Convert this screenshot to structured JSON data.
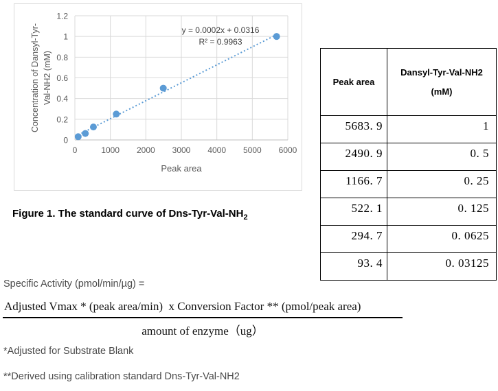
{
  "chart_data": {
    "type": "scatter",
    "xlabel": "Peak area",
    "ylabel_lines": [
      "Concentration of Dansyl-Tyr-",
      "Val-NH2 (mM)"
    ],
    "x": [
      93.4,
      294.7,
      522.1,
      1166.7,
      2490.9,
      5683.9
    ],
    "y": [
      0.03125,
      0.0625,
      0.125,
      0.25,
      0.5,
      1
    ],
    "xlim": [
      0,
      6000
    ],
    "ylim": [
      0,
      1.2
    ],
    "x_ticks": [
      0,
      1000,
      2000,
      3000,
      4000,
      5000,
      6000
    ],
    "y_ticks": [
      0,
      0.2,
      0.4,
      0.6,
      0.8,
      1,
      1.2
    ],
    "grid": true,
    "legend": "none",
    "trendline": {
      "style": "dotted",
      "equation": "y = 0.0002x + 0.0316",
      "r_squared": "R² = 0.9963",
      "fit_slope": 0.0001735,
      "fit_intercept": 0.0317,
      "draw_x": [
        93.4,
        5683.9
      ]
    },
    "colors": {
      "point": "#5b9bd5",
      "trendline": "#5b9bd5",
      "gridline": "#d9d9d9",
      "axis_line": "#bfbfbf",
      "tick_text": "#595959",
      "annotation_text": "#404040"
    }
  },
  "table": {
    "col1_header": "Peak area",
    "col2_header_line1": "Dansyl-Tyr-Val-NH2",
    "col2_header_line2": "(mM)",
    "rows": [
      [
        "5683. 9",
        "1"
      ],
      [
        "2490. 9",
        "0. 5"
      ],
      [
        "1166. 7",
        "0. 25"
      ],
      [
        "522. 1",
        "0. 125"
      ],
      [
        "294. 7",
        "0. 0625"
      ],
      [
        "93. 4",
        "0. 03125"
      ]
    ]
  },
  "caption": {
    "text": "Figure 1. The standard curve of Dns-Tyr-Val-NH",
    "subscript": "2"
  },
  "activity": {
    "label": "Specific Activity (pmol/min/µg) ="
  },
  "formula": {
    "numerator": "Adjusted Vmax * (peak area/min)  x Conversion Factor ** (pmol/peak area)",
    "denominator": "amount of enzyme（ug）"
  },
  "notes": {
    "note1": "*Adjusted for Substrate Blank",
    "note2": "**Derived using calibration standard Dns-Tyr-Val-NH2"
  }
}
